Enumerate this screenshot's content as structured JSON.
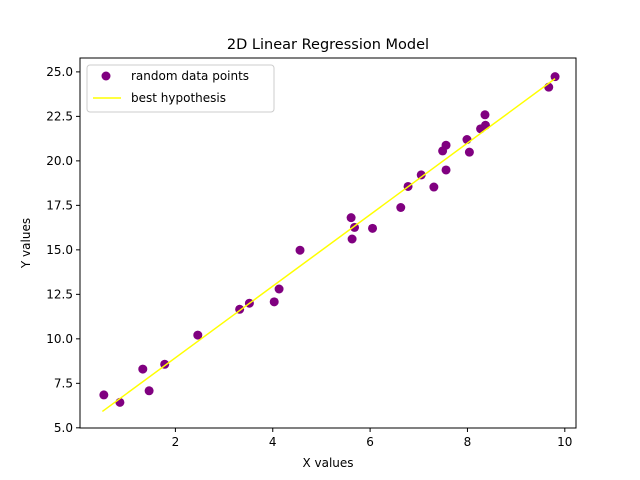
{
  "chart_data": {
    "type": "scatter",
    "title": "2D Linear Regression Model",
    "xlabel": "X values",
    "ylabel": "Y values",
    "xlim": [
      0.04,
      10.23
    ],
    "ylim": [
      4.99,
      25.78
    ],
    "xticks": [
      2,
      4,
      6,
      8,
      10
    ],
    "yticks": [
      5.0,
      7.5,
      10.0,
      12.5,
      15.0,
      17.5,
      20.0,
      22.5,
      25.0
    ],
    "grid": false,
    "legend_position": "top-left",
    "series": [
      {
        "name": "random data points",
        "kind": "scatter",
        "color": "#800080",
        "points": [
          [
            0.53,
            6.85
          ],
          [
            0.86,
            6.43
          ],
          [
            1.33,
            8.3
          ],
          [
            1.46,
            7.08
          ],
          [
            1.78,
            8.57
          ],
          [
            2.46,
            10.21
          ],
          [
            3.32,
            11.66
          ],
          [
            3.52,
            12.0
          ],
          [
            4.03,
            12.08
          ],
          [
            4.13,
            12.8
          ],
          [
            4.56,
            14.98
          ],
          [
            5.61,
            16.81
          ],
          [
            5.63,
            15.61
          ],
          [
            5.68,
            16.26
          ],
          [
            6.05,
            16.21
          ],
          [
            6.63,
            17.38
          ],
          [
            6.78,
            18.56
          ],
          [
            7.05,
            19.21
          ],
          [
            7.31,
            18.53
          ],
          [
            7.49,
            20.56
          ],
          [
            7.56,
            20.88
          ],
          [
            7.56,
            19.49
          ],
          [
            7.99,
            21.2
          ],
          [
            8.04,
            20.49
          ],
          [
            8.27,
            21.8
          ],
          [
            8.37,
            22.0
          ],
          [
            8.36,
            22.59
          ],
          [
            9.67,
            24.14
          ],
          [
            9.8,
            24.73
          ]
        ]
      },
      {
        "name": "best hypothesis",
        "kind": "line",
        "color": "#ffff00",
        "points": [
          [
            0.5,
            5.92
          ],
          [
            9.8,
            24.62
          ]
        ]
      }
    ]
  }
}
